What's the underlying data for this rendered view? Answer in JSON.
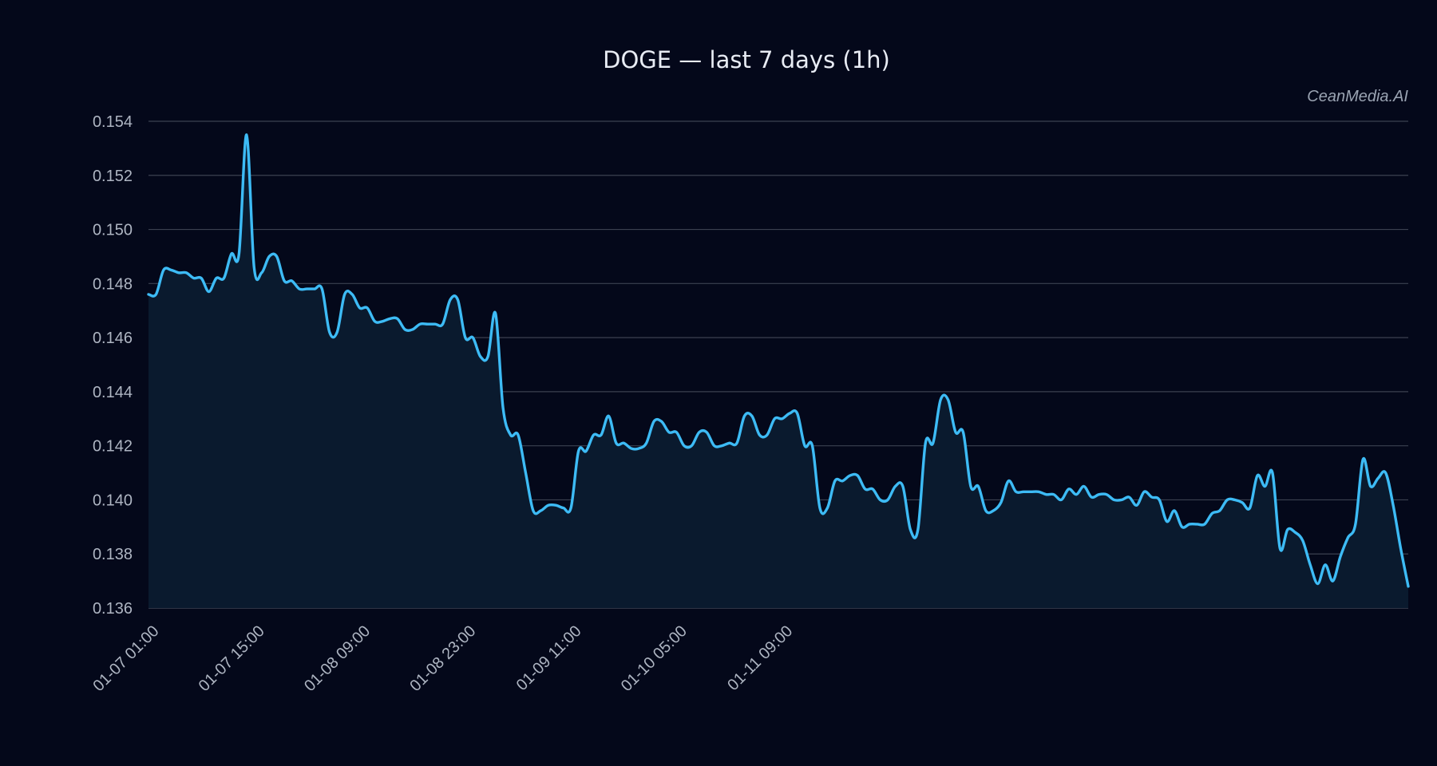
{
  "chart_data": {
    "type": "line",
    "title": "DOGE — last 7 days (1h)",
    "watermark": "CeanMedia.AI",
    "xlabel": "",
    "ylabel": "",
    "ylim": [
      0.136,
      0.154
    ],
    "yticks": [
      "0.136",
      "0.138",
      "0.140",
      "0.142",
      "0.144",
      "0.146",
      "0.148",
      "0.150",
      "0.152",
      "0.154"
    ],
    "xtick_labels": [
      "01-07 01:00",
      "01-07 15:00",
      "01-08 09:00",
      "01-08 23:00",
      "01-09 11:00",
      "01-10 05:00",
      "01-11 09:00"
    ],
    "grid": true,
    "series": [
      {
        "color": "#3dbbf5",
        "fill": "#0a1a2e",
        "values": [
          0.1476,
          0.1476,
          0.1485,
          0.1485,
          0.1484,
          0.1484,
          0.1482,
          0.1482,
          0.1477,
          0.1482,
          0.1482,
          0.1491,
          0.1491,
          0.1535,
          0.1486,
          0.1484,
          0.149,
          0.149,
          0.1481,
          0.1481,
          0.1478,
          0.1478,
          0.1478,
          0.1478,
          0.1462,
          0.1462,
          0.1476,
          0.1476,
          0.1471,
          0.1471,
          0.1466,
          0.1466,
          0.1467,
          0.1467,
          0.1463,
          0.1463,
          0.1465,
          0.1465,
          0.1465,
          0.1465,
          0.1474,
          0.1474,
          0.146,
          0.146,
          0.1453,
          0.1453,
          0.1469,
          0.1434,
          0.1424,
          0.1424,
          0.141,
          0.1396,
          0.1396,
          0.1398,
          0.1398,
          0.1397,
          0.1397,
          0.1418,
          0.1418,
          0.1424,
          0.1424,
          0.1431,
          0.1421,
          0.1421,
          0.1419,
          0.1419,
          0.1421,
          0.1429,
          0.1429,
          0.1425,
          0.1425,
          0.142,
          0.142,
          0.1425,
          0.1425,
          0.142,
          0.142,
          0.1421,
          0.1421,
          0.1431,
          0.1431,
          0.1424,
          0.1424,
          0.143,
          0.143,
          0.1432,
          0.1432,
          0.142,
          0.142,
          0.1397,
          0.1397,
          0.1407,
          0.1407,
          0.1409,
          0.1409,
          0.1404,
          0.1404,
          0.14,
          0.14,
          0.1405,
          0.1405,
          0.1389,
          0.1389,
          0.1421,
          0.1421,
          0.1437,
          0.1437,
          0.1425,
          0.1425,
          0.1405,
          0.1405,
          0.1396,
          0.1396,
          0.1399,
          0.1407,
          0.1403,
          0.1403,
          0.1403,
          0.1403,
          0.1402,
          0.1402,
          0.14,
          0.1404,
          0.1402,
          0.1405,
          0.1401,
          0.1402,
          0.1402,
          0.14,
          0.14,
          0.1401,
          0.1398,
          0.1403,
          0.1401,
          0.14,
          0.1392,
          0.1396,
          0.139,
          0.1391,
          0.1391,
          0.1391,
          0.1395,
          0.1396,
          0.14,
          0.14,
          0.1399,
          0.1397,
          0.1409,
          0.1405,
          0.141,
          0.1382,
          0.1389,
          0.1388,
          0.1385,
          0.1376,
          0.1369,
          0.1376,
          0.137,
          0.1379,
          0.1386,
          0.1391,
          0.1415,
          0.1405,
          0.1408,
          0.141,
          0.1398,
          0.1382,
          0.1368
        ]
      }
    ]
  }
}
